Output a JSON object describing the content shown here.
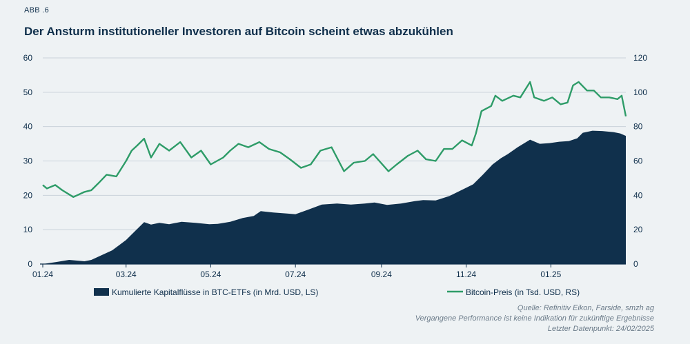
{
  "figure_label": "ABB .6",
  "title": "Der Ansturm institutioneller Investoren auf Bitcoin scheint etwas abzukühlen",
  "source_lines": [
    "Quelle: Refinitiv Eikon, Farside, smzh ag",
    "Vergangene Performance ist keine Indikation für zukünftige Ergebnisse",
    "Letzter Datenpunkt: 24/02/2025"
  ],
  "colors": {
    "area": "#10304c",
    "line": "#2e9c68",
    "axis": "#0f2f4b",
    "background": "#eef2f4"
  },
  "chart_data": {
    "type": "area",
    "title": "Der Ansturm institutioneller Investoren auf Bitcoin scheint etwas abzukühlen",
    "x_tick_labels": [
      "01.24",
      "03.24",
      "05.24",
      "07.24",
      "09.24",
      "11.24",
      "01.25"
    ],
    "x_tick_dates": [
      "2024-01-01",
      "2024-03-01",
      "2024-05-01",
      "2024-07-01",
      "2024-09-01",
      "2024-11-01",
      "2025-01-01"
    ],
    "x_range": [
      "2024-01-01",
      "2025-02-24"
    ],
    "y_left": {
      "ylim": [
        0,
        60
      ],
      "ticks": [
        0,
        10,
        20,
        30,
        40,
        50,
        60
      ]
    },
    "y_right": {
      "ylim": [
        0,
        120
      ],
      "ticks": [
        0,
        20,
        40,
        60,
        80,
        100,
        120
      ]
    },
    "grid": "horizontal",
    "legend_position": "bottom",
    "series": [
      {
        "name": "Kumulierte Kapitalflüsse in BTC-ETFs (in Mrd. USD, LS)",
        "type": "area",
        "axis": "left",
        "points": [
          [
            "2024-01-01",
            0
          ],
          [
            "2024-01-11",
            0.6
          ],
          [
            "2024-01-20",
            1.2
          ],
          [
            "2024-01-31",
            0.8
          ],
          [
            "2024-02-05",
            1.2
          ],
          [
            "2024-02-12",
            2.5
          ],
          [
            "2024-02-20",
            4.0
          ],
          [
            "2024-02-26",
            5.8
          ],
          [
            "2024-03-01",
            7.0
          ],
          [
            "2024-03-06",
            9.0
          ],
          [
            "2024-03-11",
            11.0
          ],
          [
            "2024-03-14",
            12.2
          ],
          [
            "2024-03-19",
            11.5
          ],
          [
            "2024-03-25",
            12.0
          ],
          [
            "2024-04-01",
            11.6
          ],
          [
            "2024-04-10",
            12.3
          ],
          [
            "2024-04-20",
            12.0
          ],
          [
            "2024-04-30",
            11.6
          ],
          [
            "2024-05-06",
            11.7
          ],
          [
            "2024-05-15",
            12.3
          ],
          [
            "2024-05-24",
            13.4
          ],
          [
            "2024-06-01",
            14.0
          ],
          [
            "2024-06-06",
            15.4
          ],
          [
            "2024-06-15",
            15.0
          ],
          [
            "2024-06-25",
            14.7
          ],
          [
            "2024-07-01",
            14.5
          ],
          [
            "2024-07-10",
            15.8
          ],
          [
            "2024-07-20",
            17.3
          ],
          [
            "2024-07-31",
            17.6
          ],
          [
            "2024-08-10",
            17.3
          ],
          [
            "2024-08-20",
            17.6
          ],
          [
            "2024-08-27",
            17.9
          ],
          [
            "2024-09-05",
            17.2
          ],
          [
            "2024-09-15",
            17.6
          ],
          [
            "2024-09-25",
            18.3
          ],
          [
            "2024-10-01",
            18.6
          ],
          [
            "2024-10-10",
            18.5
          ],
          [
            "2024-10-20",
            19.8
          ],
          [
            "2024-10-31",
            22.0
          ],
          [
            "2024-11-06",
            23.2
          ],
          [
            "2024-11-13",
            26.0
          ],
          [
            "2024-11-20",
            29.0
          ],
          [
            "2024-11-26",
            30.8
          ],
          [
            "2024-12-01",
            32.0
          ],
          [
            "2024-12-08",
            34.0
          ],
          [
            "2024-12-17",
            36.2
          ],
          [
            "2024-12-24",
            35.0
          ],
          [
            "2024-12-31",
            35.2
          ],
          [
            "2025-01-07",
            35.6
          ],
          [
            "2025-01-14",
            35.8
          ],
          [
            "2025-01-20",
            36.6
          ],
          [
            "2025-01-24",
            38.2
          ],
          [
            "2025-01-31",
            38.8
          ],
          [
            "2025-02-07",
            38.7
          ],
          [
            "2025-02-15",
            38.4
          ],
          [
            "2025-02-20",
            38.0
          ],
          [
            "2025-02-24",
            37.3
          ]
        ]
      },
      {
        "name": "Bitcoin-Preis (in Tsd. USD, RS)",
        "type": "line",
        "axis": "right",
        "points": [
          [
            "2024-01-01",
            46
          ],
          [
            "2024-01-04",
            44
          ],
          [
            "2024-01-10",
            46
          ],
          [
            "2024-01-15",
            43
          ],
          [
            "2024-01-23",
            39
          ],
          [
            "2024-01-31",
            42
          ],
          [
            "2024-02-05",
            43
          ],
          [
            "2024-02-10",
            47
          ],
          [
            "2024-02-16",
            52
          ],
          [
            "2024-02-23",
            51
          ],
          [
            "2024-03-01",
            60
          ],
          [
            "2024-03-05",
            66
          ],
          [
            "2024-03-09",
            69
          ],
          [
            "2024-03-14",
            73
          ],
          [
            "2024-03-19",
            62
          ],
          [
            "2024-03-25",
            70
          ],
          [
            "2024-04-01",
            66
          ],
          [
            "2024-04-09",
            71
          ],
          [
            "2024-04-17",
            62
          ],
          [
            "2024-04-24",
            66
          ],
          [
            "2024-05-01",
            58
          ],
          [
            "2024-05-10",
            62
          ],
          [
            "2024-05-15",
            66
          ],
          [
            "2024-05-21",
            70
          ],
          [
            "2024-05-28",
            68
          ],
          [
            "2024-06-05",
            71
          ],
          [
            "2024-06-12",
            67
          ],
          [
            "2024-06-20",
            65
          ],
          [
            "2024-06-27",
            61
          ],
          [
            "2024-07-05",
            56
          ],
          [
            "2024-07-12",
            58
          ],
          [
            "2024-07-19",
            66
          ],
          [
            "2024-07-27",
            68
          ],
          [
            "2024-08-05",
            54
          ],
          [
            "2024-08-12",
            59
          ],
          [
            "2024-08-20",
            60
          ],
          [
            "2024-08-26",
            64
          ],
          [
            "2024-09-06",
            54
          ],
          [
            "2024-09-12",
            58
          ],
          [
            "2024-09-20",
            63
          ],
          [
            "2024-09-27",
            66
          ],
          [
            "2024-10-03",
            61
          ],
          [
            "2024-10-10",
            60
          ],
          [
            "2024-10-16",
            67
          ],
          [
            "2024-10-22",
            67
          ],
          [
            "2024-10-29",
            72
          ],
          [
            "2024-11-05",
            69
          ],
          [
            "2024-11-08",
            76
          ],
          [
            "2024-11-12",
            89
          ],
          [
            "2024-11-19",
            92
          ],
          [
            "2024-11-22",
            98
          ],
          [
            "2024-11-27",
            95
          ],
          [
            "2024-12-05",
            98
          ],
          [
            "2024-12-10",
            97
          ],
          [
            "2024-12-17",
            106
          ],
          [
            "2024-12-20",
            97
          ],
          [
            "2024-12-27",
            95
          ],
          [
            "2025-01-02",
            97
          ],
          [
            "2025-01-08",
            93
          ],
          [
            "2025-01-13",
            94
          ],
          [
            "2025-01-17",
            104
          ],
          [
            "2025-01-21",
            106
          ],
          [
            "2025-01-27",
            101
          ],
          [
            "2025-02-01",
            101
          ],
          [
            "2025-02-06",
            97
          ],
          [
            "2025-02-12",
            97
          ],
          [
            "2025-02-18",
            96
          ],
          [
            "2025-02-21",
            98
          ],
          [
            "2025-02-24",
            86
          ]
        ]
      }
    ]
  }
}
